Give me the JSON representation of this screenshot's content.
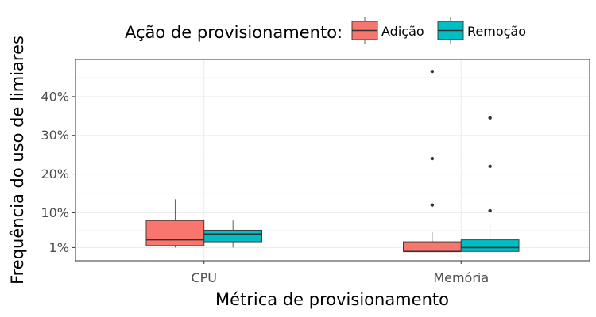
{
  "legend": {
    "title": "Ação de provisionamento:",
    "position": "top"
  },
  "chart_data": {
    "type": "boxplot",
    "xlabel": "Métrica de provisionamento",
    "ylabel": "Frequência do uso de limiares",
    "categories": [
      "CPU",
      "Memória"
    ],
    "y_ticks": [
      1,
      10,
      20,
      30,
      40
    ],
    "y_tick_labels": [
      "1%",
      "10%",
      "20%",
      "30%",
      "40%"
    ],
    "ylim": [
      -2.4,
      49.6
    ],
    "grid": true,
    "series": [
      {
        "name": "Adição",
        "color": "#F8766D",
        "boxes": [
          {
            "min": 1.0,
            "q1": 1.5,
            "median": 3.0,
            "q3": 8.0,
            "max": 13.5,
            "outliers": []
          },
          {
            "min": 0.0,
            "q1": 0.0,
            "median": 0.0,
            "q3": 2.5,
            "max": 5.0,
            "outliers": [
              12.0,
              24.0,
              46.5
            ]
          }
        ]
      },
      {
        "name": "Remoção",
        "color": "#00BFC4",
        "boxes": [
          {
            "min": 1.0,
            "q1": 2.5,
            "median": 4.5,
            "q3": 5.5,
            "max": 8.0,
            "outliers": []
          },
          {
            "min": 0.0,
            "q1": 0.0,
            "median": 1.0,
            "q3": 3.0,
            "max": 7.5,
            "outliers": [
              10.5,
              22.0,
              34.5
            ]
          }
        ]
      }
    ]
  }
}
